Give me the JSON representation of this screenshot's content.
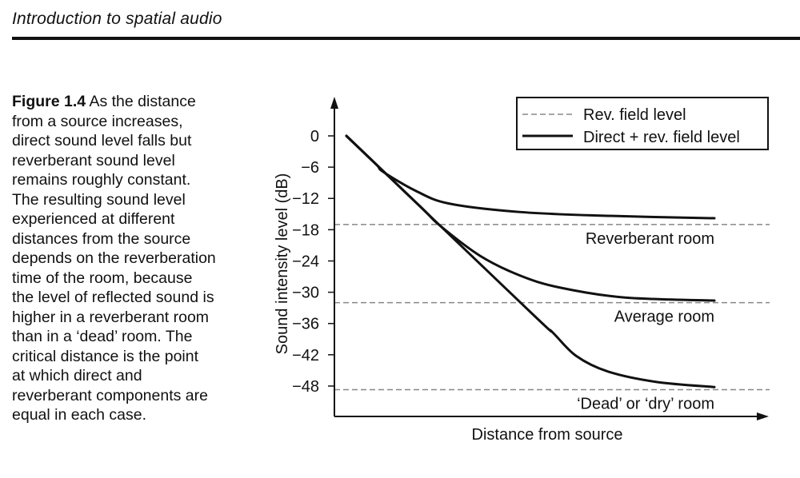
{
  "header": {
    "running_title": "Introduction to spatial audio"
  },
  "caption": {
    "label": "Figure 1.4",
    "lines": [
      " As the distance",
      "from a source increases,",
      "direct sound level falls but",
      "reverberant sound level",
      "remains roughly constant.",
      "The resulting sound level",
      "experienced at different",
      "distances from the source",
      "depends on the reverberation",
      "time of the room, because",
      "the level of reflected sound is",
      "higher in a reverberant room",
      "than in a ‘dead’ room. The",
      "critical distance is the point",
      "at which direct and",
      "reverberant components are",
      "equal in each case."
    ]
  },
  "chart_data": {
    "type": "line",
    "title": "",
    "xlabel": "Distance from source",
    "ylabel": "Sound intensity level (dB)",
    "ylim": [
      -54,
      7
    ],
    "yticks": [
      0,
      -6,
      -12,
      -18,
      -24,
      -30,
      -36,
      -42,
      -48
    ],
    "ytick_labels": [
      "0",
      "−6",
      "−12",
      "−18",
      "−24",
      "−30",
      "−36",
      "−42",
      "−48"
    ],
    "xticks": [],
    "grid": false,
    "legend": {
      "placement": "top-right",
      "entries": [
        {
          "label": "Rev. field level",
          "style": "dashed",
          "color": "#888888"
        },
        {
          "label": "Direct + rev. field level",
          "style": "solid",
          "color": "#111111"
        }
      ]
    },
    "reference_levels": [
      {
        "label": "Reverberant room",
        "y": -17
      },
      {
        "label": "Average room",
        "y": -32
      },
      {
        "label": "‘Dead’ or ‘dry’ room",
        "y": -48.7
      }
    ],
    "series": [
      {
        "room": "Reverberant room",
        "points": [
          [
            0,
            0
          ],
          [
            0.8,
            -5.4
          ],
          [
            1.0,
            -6.9
          ],
          [
            1.9,
            -10.6
          ],
          [
            2.8,
            -13
          ],
          [
            4.7,
            -14.6
          ],
          [
            6.9,
            -15.3
          ],
          [
            10,
            -15.8
          ]
        ]
      },
      {
        "room": "Average room",
        "points": [
          [
            0,
            0
          ],
          [
            2.0,
            -13.5
          ],
          [
            2.54,
            -17.2
          ],
          [
            3.63,
            -23
          ],
          [
            4.72,
            -26.8
          ],
          [
            5.8,
            -29.1
          ],
          [
            7.54,
            -31
          ],
          [
            10,
            -31.6
          ]
        ]
      },
      {
        "room": "‘Dead’ or ‘dry’ room",
        "points": [
          [
            0,
            0
          ],
          [
            5.0,
            -33.8
          ],
          [
            5.59,
            -37.6
          ],
          [
            6.24,
            -42.2
          ],
          [
            7.1,
            -45.2
          ],
          [
            8.41,
            -47.2
          ],
          [
            10,
            -48.2
          ]
        ]
      }
    ]
  }
}
